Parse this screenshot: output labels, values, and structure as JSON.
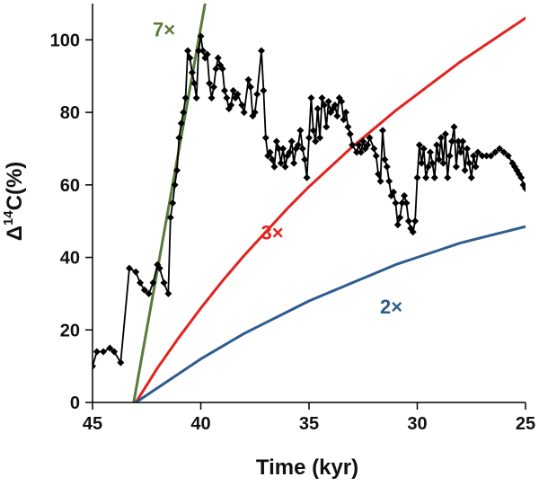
{
  "chart_data": {
    "type": "line",
    "title": "",
    "xlabel": "Time (kyr)",
    "ylabel_main": "Δ",
    "ylabel_sup": "14",
    "ylabel_rest": "C(%)",
    "xlim": [
      45,
      25
    ],
    "ylim": [
      0,
      110
    ],
    "x_reversed": true,
    "grid": false,
    "xticks": [
      45,
      40,
      35,
      30,
      25
    ],
    "yticks": [
      0,
      20,
      40,
      60,
      80,
      100
    ],
    "xtick_labels": [
      "45",
      "40",
      "35",
      "30",
      "25"
    ],
    "ytick_labels": [
      "0",
      "20",
      "40",
      "60",
      "80",
      "100"
    ],
    "series": [
      {
        "kind": "observed",
        "color": "#000000",
        "marker": "diamond",
        "points": [
          [
            45.0,
            10.0
          ],
          [
            44.8,
            14.0
          ],
          [
            44.5,
            14.0
          ],
          [
            44.2,
            15.0
          ],
          [
            44.0,
            14.0
          ],
          [
            43.7,
            11.0
          ],
          [
            43.3,
            37.0
          ],
          [
            43.0,
            36.0
          ],
          [
            42.8,
            33.0
          ],
          [
            42.6,
            31.0
          ],
          [
            42.4,
            30.0
          ],
          [
            42.2,
            33.0
          ],
          [
            42.0,
            38.0
          ],
          [
            41.9,
            37.0
          ],
          [
            41.7,
            33.0
          ],
          [
            41.5,
            30.0
          ],
          [
            41.4,
            51.0
          ],
          [
            41.3,
            55.0
          ],
          [
            41.2,
            60.0
          ],
          [
            41.1,
            64.0
          ],
          [
            41.0,
            73.0
          ],
          [
            40.9,
            77.0
          ],
          [
            40.8,
            80.0
          ],
          [
            40.7,
            84.0
          ],
          [
            40.6,
            97.0
          ],
          [
            40.5,
            95.0
          ],
          [
            40.4,
            91.0
          ],
          [
            40.3,
            88.0
          ],
          [
            40.2,
            84.0
          ],
          [
            40.1,
            97.0
          ],
          [
            40.0,
            101.0
          ],
          [
            39.9,
            97.0
          ],
          [
            39.8,
            95.0
          ],
          [
            39.7,
            96.0
          ],
          [
            39.6,
            88.0
          ],
          [
            39.5,
            84.0
          ],
          [
            39.4,
            87.0
          ],
          [
            39.3,
            92.0
          ],
          [
            39.2,
            95.0
          ],
          [
            39.1,
            93.0
          ],
          [
            39.0,
            92.0
          ],
          [
            38.9,
            86.0
          ],
          [
            38.8,
            84.0
          ],
          [
            38.7,
            81.0
          ],
          [
            38.6,
            82.0
          ],
          [
            38.5,
            86.0
          ],
          [
            38.4,
            84.0
          ],
          [
            38.3,
            85.0
          ],
          [
            38.1,
            82.0
          ],
          [
            38.0,
            80.0
          ],
          [
            37.8,
            89.0
          ],
          [
            37.7,
            87.0
          ],
          [
            37.6,
            79.0
          ],
          [
            37.5,
            80.0
          ],
          [
            37.4,
            85.0
          ],
          [
            37.2,
            97.0
          ],
          [
            37.1,
            86.0
          ],
          [
            37.0,
            73.0
          ],
          [
            36.9,
            68.0
          ],
          [
            36.8,
            69.0
          ],
          [
            36.7,
            67.0
          ],
          [
            36.6,
            65.0
          ],
          [
            36.5,
            72.0
          ],
          [
            36.4,
            70.0
          ],
          [
            36.3,
            66.0
          ],
          [
            36.2,
            70.0
          ],
          [
            36.1,
            65.0
          ],
          [
            36.0,
            68.0
          ],
          [
            35.9,
            69.0
          ],
          [
            35.8,
            72.0
          ],
          [
            35.7,
            66.0
          ],
          [
            35.6,
            70.0
          ],
          [
            35.5,
            71.0
          ],
          [
            35.4,
            75.0
          ],
          [
            35.3,
            70.0
          ],
          [
            35.2,
            67.0
          ],
          [
            35.1,
            62.0
          ],
          [
            35.0,
            73.0
          ],
          [
            34.9,
            84.0
          ],
          [
            34.8,
            75.0
          ],
          [
            34.7,
            72.0
          ],
          [
            34.6,
            81.0
          ],
          [
            34.5,
            73.0
          ],
          [
            34.4,
            84.0
          ],
          [
            34.3,
            82.0
          ],
          [
            34.2,
            76.0
          ],
          [
            34.1,
            83.0
          ],
          [
            34.0,
            80.0
          ],
          [
            33.9,
            81.0
          ],
          [
            33.8,
            82.0
          ],
          [
            33.7,
            79.0
          ],
          [
            33.6,
            84.0
          ],
          [
            33.5,
            83.0
          ],
          [
            33.4,
            78.0
          ],
          [
            33.3,
            80.0
          ],
          [
            33.2,
            76.0
          ],
          [
            33.1,
            74.0
          ],
          [
            33.0,
            71.0
          ],
          [
            32.8,
            69.0
          ],
          [
            32.7,
            71.0
          ],
          [
            32.6,
            69.0
          ],
          [
            32.5,
            72.0
          ],
          [
            32.4,
            70.0
          ],
          [
            32.3,
            71.0
          ],
          [
            32.2,
            73.0
          ],
          [
            32.0,
            70.0
          ],
          [
            31.9,
            68.0
          ],
          [
            31.8,
            63.0
          ],
          [
            31.7,
            61.0
          ],
          [
            31.6,
            75.0
          ],
          [
            31.5,
            67.0
          ],
          [
            31.4,
            65.0
          ],
          [
            31.3,
            61.0
          ],
          [
            31.2,
            57.0
          ],
          [
            31.1,
            58.0
          ],
          [
            31.0,
            55.0
          ],
          [
            30.9,
            49.0
          ],
          [
            30.8,
            51.0
          ],
          [
            30.7,
            55.0
          ],
          [
            30.6,
            57.0
          ],
          [
            30.5,
            55.0
          ],
          [
            30.4,
            50.0
          ],
          [
            30.3,
            48.0
          ],
          [
            30.2,
            47.0
          ],
          [
            30.1,
            50.0
          ],
          [
            30.0,
            62.0
          ],
          [
            29.9,
            71.0
          ],
          [
            29.8,
            66.0
          ],
          [
            29.7,
            70.0
          ],
          [
            29.6,
            62.0
          ],
          [
            29.5,
            65.0
          ],
          [
            29.4,
            69.0
          ],
          [
            29.3,
            66.0
          ],
          [
            29.2,
            62.0
          ],
          [
            29.1,
            71.0
          ],
          [
            29.0,
            67.0
          ],
          [
            28.9,
            73.0
          ],
          [
            28.8,
            66.0
          ],
          [
            28.7,
            74.0
          ],
          [
            28.6,
            62.0
          ],
          [
            28.5,
            68.0
          ],
          [
            28.4,
            72.0
          ],
          [
            28.3,
            76.0
          ],
          [
            28.2,
            65.0
          ],
          [
            28.1,
            72.0
          ],
          [
            28.0,
            69.0
          ],
          [
            27.9,
            72.0
          ],
          [
            27.8,
            64.0
          ],
          [
            27.7,
            70.0
          ],
          [
            27.6,
            66.0
          ],
          [
            27.5,
            62.0
          ],
          [
            27.4,
            68.0
          ],
          [
            27.3,
            65.0
          ],
          [
            27.2,
            69.0
          ],
          [
            27.0,
            68.0
          ],
          [
            26.8,
            68.0
          ],
          [
            26.6,
            68.0
          ],
          [
            26.4,
            69.0
          ],
          [
            26.2,
            70.0
          ],
          [
            26.0,
            69.0
          ],
          [
            25.8,
            68.0
          ],
          [
            25.6,
            66.0
          ],
          [
            25.5,
            65.0
          ],
          [
            25.4,
            64.0
          ],
          [
            25.3,
            63.0
          ],
          [
            25.2,
            62.0
          ],
          [
            25.1,
            60.0
          ],
          [
            25.0,
            59.0
          ]
        ]
      },
      {
        "kind": "model",
        "name": "7×",
        "color": "#5a7a3a",
        "points": [
          [
            43.1,
            0.0
          ],
          [
            39.8,
            110.0
          ]
        ]
      },
      {
        "kind": "model",
        "name": "3×",
        "color": "#e42320",
        "points": [
          [
            43.0,
            0.0
          ],
          [
            42.0,
            9.5
          ],
          [
            41.0,
            18.0
          ],
          [
            40.0,
            26.0
          ],
          [
            39.0,
            33.5
          ],
          [
            38.0,
            40.5
          ],
          [
            37.0,
            47.0
          ],
          [
            36.0,
            53.5
          ],
          [
            35.0,
            59.5
          ],
          [
            34.0,
            65.0
          ],
          [
            33.0,
            70.5
          ],
          [
            32.0,
            75.5
          ],
          [
            31.0,
            80.5
          ],
          [
            30.0,
            85.0
          ],
          [
            29.0,
            89.5
          ],
          [
            28.0,
            94.0
          ],
          [
            27.0,
            98.0
          ],
          [
            26.0,
            102.0
          ],
          [
            25.0,
            106.0
          ]
        ]
      },
      {
        "kind": "model",
        "name": "2×",
        "color": "#2e5d8e",
        "points": [
          [
            43.0,
            0.0
          ],
          [
            42.0,
            4.0
          ],
          [
            41.0,
            8.0
          ],
          [
            40.0,
            12.0
          ],
          [
            39.0,
            15.5
          ],
          [
            38.0,
            19.0
          ],
          [
            37.0,
            22.0
          ],
          [
            36.0,
            25.0
          ],
          [
            35.0,
            28.0
          ],
          [
            34.0,
            30.5
          ],
          [
            33.0,
            33.0
          ],
          [
            32.0,
            35.5
          ],
          [
            31.0,
            38.0
          ],
          [
            30.0,
            40.0
          ],
          [
            29.0,
            42.0
          ],
          [
            28.0,
            44.0
          ],
          [
            27.0,
            45.5
          ],
          [
            26.0,
            47.0
          ],
          [
            25.0,
            48.5
          ]
        ]
      }
    ],
    "curve_labels": [
      {
        "text": "7×",
        "color": "#5a7a3a",
        "x": 41.7,
        "y": 101.0
      },
      {
        "text": "3×",
        "color": "#e42320",
        "x": 36.7,
        "y": 45.0
      },
      {
        "text": "2×",
        "color": "#2e5d8e",
        "x": 31.2,
        "y": 24.5
      }
    ]
  }
}
